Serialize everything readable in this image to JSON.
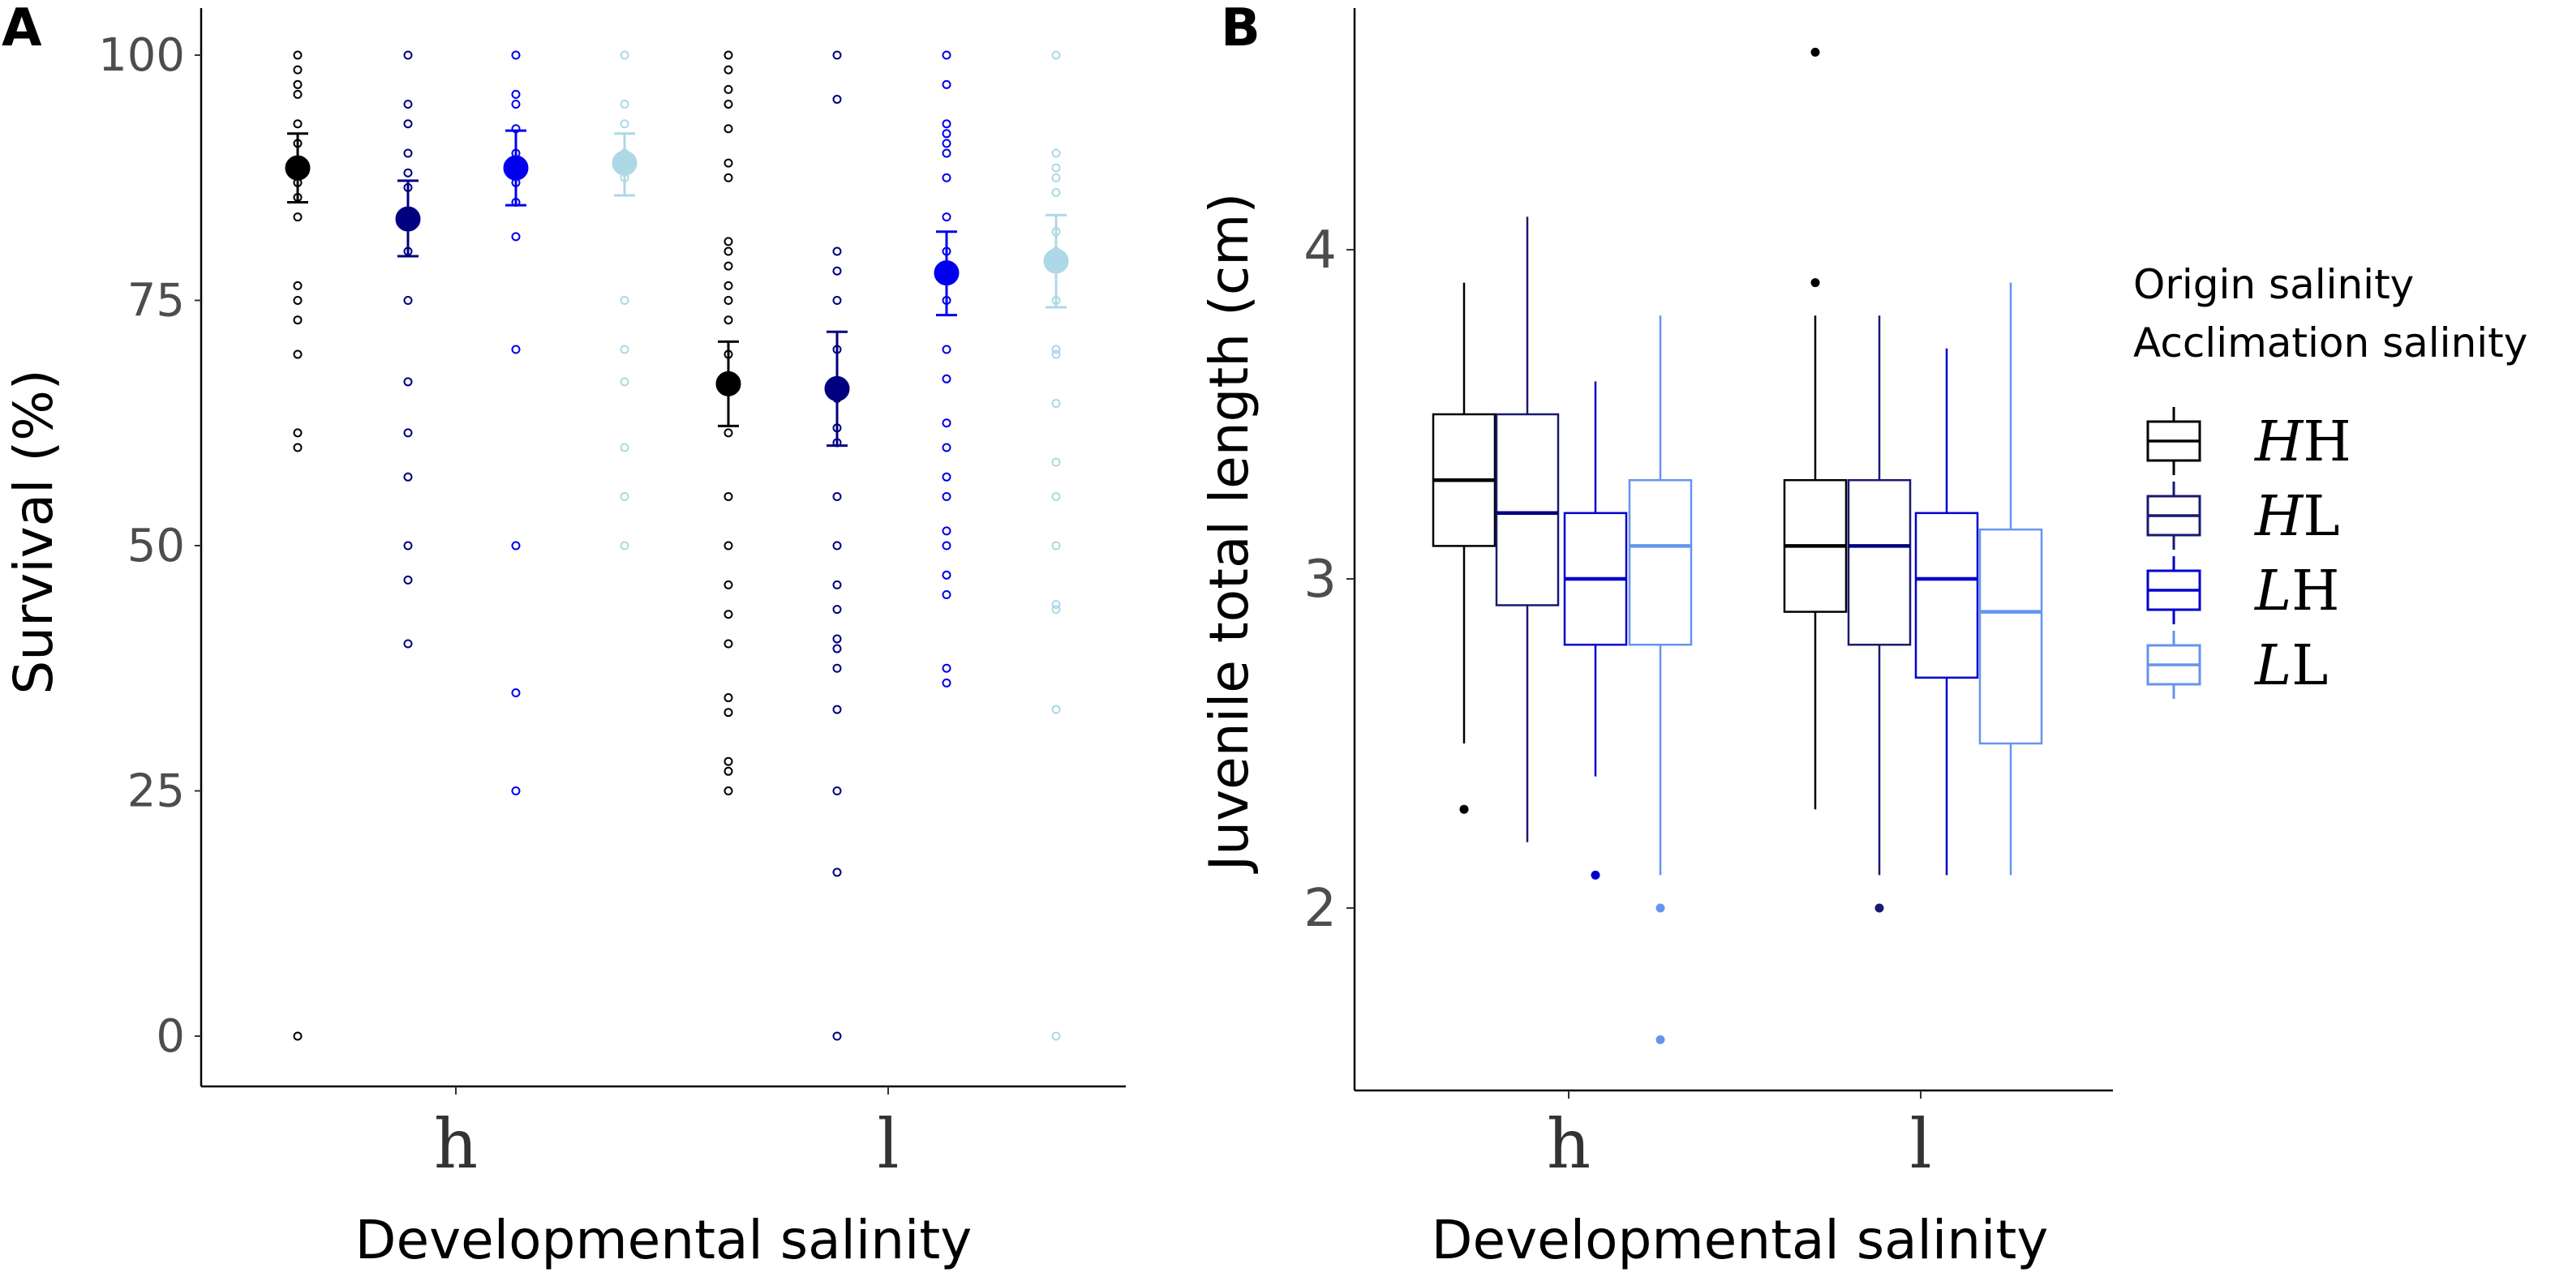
{
  "chart_data": [
    {
      "panel": "A",
      "type": "scatter",
      "xlabel": "Developmental salinity",
      "ylabel": "Survival (%)",
      "categories": [
        "h",
        "l"
      ],
      "ylim": [
        0,
        100
      ],
      "yticks": [
        0,
        25,
        50,
        75,
        100
      ],
      "grid": false,
      "series": [
        {
          "name": "HH",
          "color": "#000000",
          "means": [
            88.5,
            66.5
          ],
          "ci_low": [
            85.0,
            62.2
          ],
          "ci_high": [
            92.0,
            70.8
          ],
          "raw": [
            [
              100,
              98.5,
              97,
              96,
              93,
              91,
              88,
              87,
              85.5,
              83.5,
              76.5,
              75,
              73,
              69.5,
              61.5,
              60,
              0
            ],
            [
              100,
              98.5,
              96.5,
              95,
              92.5,
              89,
              87.5,
              81,
              80,
              78.5,
              76.5,
              75,
              73,
              69.5,
              66.5,
              61.5,
              55,
              50,
              46,
              43,
              40,
              34.5,
              33,
              28,
              27,
              25
            ]
          ]
        },
        {
          "name": "HL",
          "color": "#000080",
          "means": [
            83.3,
            66.0
          ],
          "ci_low": [
            79.5,
            60.2
          ],
          "ci_high": [
            87.2,
            71.8
          ],
          "raw": [
            [
              100,
              95,
              93,
              90,
              88,
              86.5,
              83.5,
              80,
              75,
              66.7,
              61.5,
              57,
              50,
              46.5,
              40
            ],
            [
              100,
              95.5,
              80,
              78,
              75,
              70,
              65,
              62,
              60.5,
              55,
              50,
              46,
              43.5,
              40.5,
              39.5,
              37.5,
              33.3,
              25,
              16.7,
              0
            ]
          ]
        },
        {
          "name": "LH",
          "color": "#0000ee",
          "means": [
            88.5,
            77.8
          ],
          "ci_low": [
            84.7,
            73.5
          ],
          "ci_high": [
            92.3,
            82.0
          ],
          "raw": [
            [
              100,
              96,
              95,
              92.5,
              90,
              87,
              85,
              81.5,
              70,
              50,
              35,
              25
            ],
            [
              100,
              97,
              93,
              92,
              91,
              90,
              87.5,
              83.5,
              80,
              75,
              70,
              67,
              62.5,
              60,
              57,
              55,
              51.5,
              50,
              47,
              45,
              37.5,
              36
            ]
          ]
        },
        {
          "name": "LL",
          "color": "#add8e6",
          "means": [
            89.0,
            79.0
          ],
          "ci_low": [
            85.7,
            74.3
          ],
          "ci_high": [
            92.0,
            83.7
          ],
          "raw": [
            [
              100,
              95,
              93,
              90,
              87.5,
              75,
              70,
              66.7,
              60,
              55,
              50
            ],
            [
              100,
              90,
              88.5,
              87.5,
              86,
              82,
              80,
              75,
              70,
              69.5,
              64.5,
              58.5,
              55,
              50,
              44,
              43.5,
              33.3,
              0
            ]
          ]
        }
      ]
    },
    {
      "panel": "B",
      "type": "box",
      "xlabel": "Developmental salinity",
      "ylabel": "Juvenile total length  (cm)",
      "categories": [
        "h",
        "l"
      ],
      "ylim": [
        1.5,
        4.75
      ],
      "yticks": [
        2,
        3,
        4
      ],
      "grid": false,
      "legend": {
        "title_lines": [
          "Origin salinity",
          "Acclimation salinity"
        ],
        "position": "right"
      },
      "series": [
        {
          "name": "HH",
          "color": "#000000",
          "median_color": "#000000",
          "boxes": [
            {
              "low": 2.5,
              "q1": 3.1,
              "median": 3.3,
              "q3": 3.5,
              "high": 3.9,
              "outliers": [
                2.3
              ]
            },
            {
              "low": 2.3,
              "q1": 2.9,
              "median": 3.1,
              "q3": 3.3,
              "high": 3.8,
              "outliers": [
                3.9,
                4.6
              ]
            }
          ]
        },
        {
          "name": "HL",
          "color": "#191970",
          "median_color": "#000080",
          "boxes": [
            {
              "low": 2.2,
              "q1": 2.92,
              "median": 3.2,
              "q3": 3.5,
              "high": 4.1,
              "outliers": []
            },
            {
              "low": 2.1,
              "q1": 2.8,
              "median": 3.1,
              "q3": 3.3,
              "high": 3.8,
              "outliers": [
                2.0
              ]
            }
          ]
        },
        {
          "name": "LH",
          "color": "#0000cd",
          "median_color": "#0000cd",
          "boxes": [
            {
              "low": 2.4,
              "q1": 2.8,
              "median": 3.0,
              "q3": 3.2,
              "high": 3.6,
              "outliers": [
                2.1
              ]
            },
            {
              "low": 2.1,
              "q1": 2.7,
              "median": 3.0,
              "q3": 3.2,
              "high": 3.7,
              "outliers": []
            }
          ]
        },
        {
          "name": "LL",
          "color": "#6495ed",
          "median_color": "#6495ed",
          "boxes": [
            {
              "low": 2.1,
              "q1": 2.8,
              "median": 3.1,
              "q3": 3.3,
              "high": 3.8,
              "outliers": [
                2.0,
                1.6
              ]
            },
            {
              "low": 2.1,
              "q1": 2.5,
              "median": 2.9,
              "q3": 3.15,
              "high": 3.9,
              "outliers": []
            }
          ]
        }
      ]
    }
  ]
}
